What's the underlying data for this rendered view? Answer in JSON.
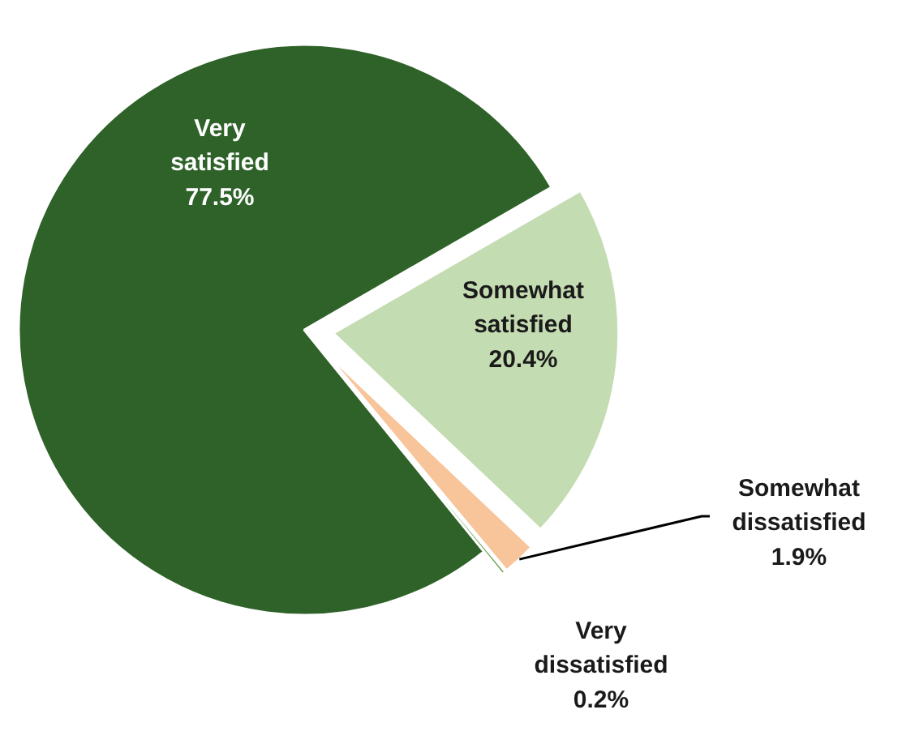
{
  "chart_data": {
    "type": "pie",
    "categories": [
      "Very satisfied",
      "Somewhat satisfied",
      "Somewhat dissatisfied",
      "Very dissatisfied"
    ],
    "values": [
      77.5,
      20.4,
      1.9,
      0.2
    ],
    "value_labels": [
      "77.5%",
      "20.4%",
      "1.9%",
      "0.2%"
    ],
    "colors": [
      "#2e6228",
      "#c4dcb2",
      "#f8c49a",
      "#5e9a40"
    ]
  }
}
